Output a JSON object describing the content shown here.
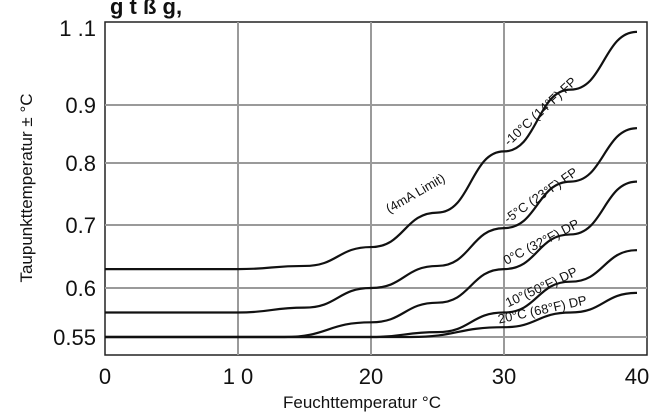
{
  "chart_data": {
    "type": "line",
    "title_fragment": "g          t          ß         g,",
    "xlabel": "Feuchttemperatur  °C",
    "ylabel": "Taupunkttemperatur ± °C",
    "xlim": [
      0,
      40
    ],
    "x_ticks": [
      {
        "value": 0,
        "label": "0"
      },
      {
        "value": 10,
        "label": "1 0"
      },
      {
        "value": 20,
        "label": "20"
      },
      {
        "value": 30,
        "label": "30"
      },
      {
        "value": 40,
        "label": "40"
      }
    ],
    "y_ticks": [
      {
        "value": 0.55,
        "label": "0.55"
      },
      {
        "value": 0.6,
        "label": "0.6"
      },
      {
        "value": 0.7,
        "label": "0.7"
      },
      {
        "value": 0.8,
        "label": "0.8"
      },
      {
        "value": 0.9,
        "label": "0.9"
      },
      {
        "value": 1.1,
        "label": "1 .1"
      }
    ],
    "grid": true,
    "series": [
      {
        "name": "-10°C (14°F) FP",
        "x": [
          0,
          10,
          15,
          20,
          25,
          30,
          35,
          40
        ],
        "y": [
          0.63,
          0.63,
          0.635,
          0.665,
          0.72,
          0.82,
          0.94,
          1.09
        ]
      },
      {
        "name": "-5°C (23°F) FP",
        "x": [
          0,
          10,
          15,
          20,
          25,
          30,
          35,
          40
        ],
        "y": [
          0.575,
          0.575,
          0.58,
          0.6,
          0.635,
          0.695,
          0.77,
          0.86
        ]
      },
      {
        "name": "0°C (32°F) DP",
        "x": [
          0,
          13.5,
          20,
          25,
          30,
          35,
          40
        ],
        "y": [
          0.55,
          0.55,
          0.565,
          0.585,
          0.63,
          0.685,
          0.77
        ]
      },
      {
        "name": "10°(50°F) DP",
        "x": [
          0,
          20,
          25,
          30,
          35,
          40
        ],
        "y": [
          0.55,
          0.55,
          0.555,
          0.575,
          0.61,
          0.66
        ]
      },
      {
        "name": "20°C (68°F) DP",
        "x": [
          0,
          23,
          30,
          35,
          40
        ],
        "y": [
          0.55,
          0.55,
          0.56,
          0.575,
          0.595
        ]
      }
    ],
    "annotations": [
      {
        "text": "(4mA Limit)",
        "x": 23.5,
        "y": 0.745
      }
    ]
  }
}
